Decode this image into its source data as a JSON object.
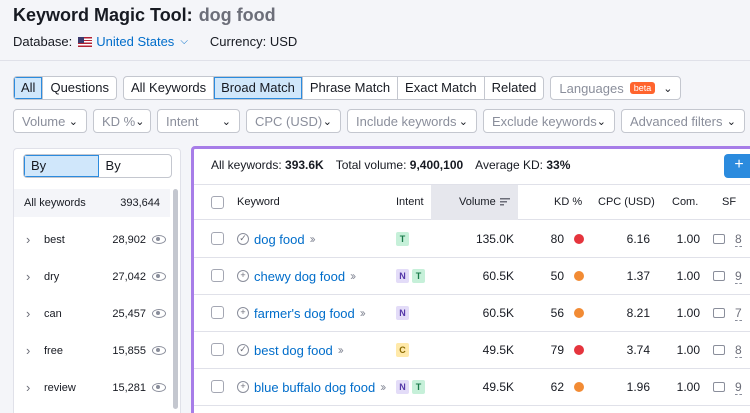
{
  "header": {
    "tool": "Keyword Magic Tool:",
    "query": "dog food"
  },
  "meta": {
    "database_label": "Database:",
    "database_value": "United States",
    "currency": "Currency: USD"
  },
  "tabs_row1": {
    "group1": [
      "All",
      "Questions"
    ],
    "group2": [
      "All Keywords",
      "Broad Match",
      "Phrase Match",
      "Exact Match",
      "Related"
    ],
    "languages": "Languages",
    "beta": "beta"
  },
  "filters": [
    "Volume",
    "KD %",
    "Intent",
    "CPC (USD)",
    "Include keywords",
    "Exclude keywords",
    "Advanced filters"
  ],
  "sidebar": {
    "toggle": [
      "By number",
      "By volume"
    ],
    "all_label": "All keywords",
    "all_value": "393,644",
    "items": [
      {
        "label": "best",
        "count": "28,902"
      },
      {
        "label": "dry",
        "count": "27,042"
      },
      {
        "label": "can",
        "count": "25,457"
      },
      {
        "label": "free",
        "count": "15,855"
      },
      {
        "label": "review",
        "count": "15,281"
      }
    ]
  },
  "summary": {
    "all_label": "All keywords:",
    "all_value": "393.6K",
    "vol_label": "Total volume:",
    "vol_value": "9,400,100",
    "kd_label": "Average KD:",
    "kd_value": "33%"
  },
  "add_button": "+",
  "columns": {
    "keyword": "Keyword",
    "intent": "Intent",
    "volume": "Volume",
    "kd": "KD %",
    "cpc": "CPC (USD)",
    "com": "Com.",
    "sf": "SF"
  },
  "rows": [
    {
      "icon": "check",
      "keyword": "dog food",
      "intent": [
        "T"
      ],
      "volume": "135.0K",
      "kd": "80",
      "kd_color": "#e5343d",
      "cpc": "6.16",
      "com": "1.00",
      "sf": "8"
    },
    {
      "icon": "plus",
      "keyword": "chewy dog food",
      "intent": [
        "N",
        "T"
      ],
      "volume": "60.5K",
      "kd": "50",
      "kd_color": "#f28b34",
      "cpc": "1.37",
      "com": "1.00",
      "sf": "9"
    },
    {
      "icon": "plus",
      "keyword": "farmer's dog food",
      "intent": [
        "N"
      ],
      "volume": "60.5K",
      "kd": "56",
      "kd_color": "#f28b34",
      "cpc": "8.21",
      "com": "1.00",
      "sf": "7"
    },
    {
      "icon": "check",
      "keyword": "best dog food",
      "intent": [
        "C"
      ],
      "volume": "49.5K",
      "kd": "79",
      "kd_color": "#e5343d",
      "cpc": "3.74",
      "com": "1.00",
      "sf": "8"
    },
    {
      "icon": "plus",
      "keyword": "blue buffalo dog food",
      "intent": [
        "N",
        "T"
      ],
      "volume": "49.5K",
      "kd": "62",
      "kd_color": "#f28b34",
      "cpc": "1.96",
      "com": "1.00",
      "sf": "9"
    }
  ]
}
